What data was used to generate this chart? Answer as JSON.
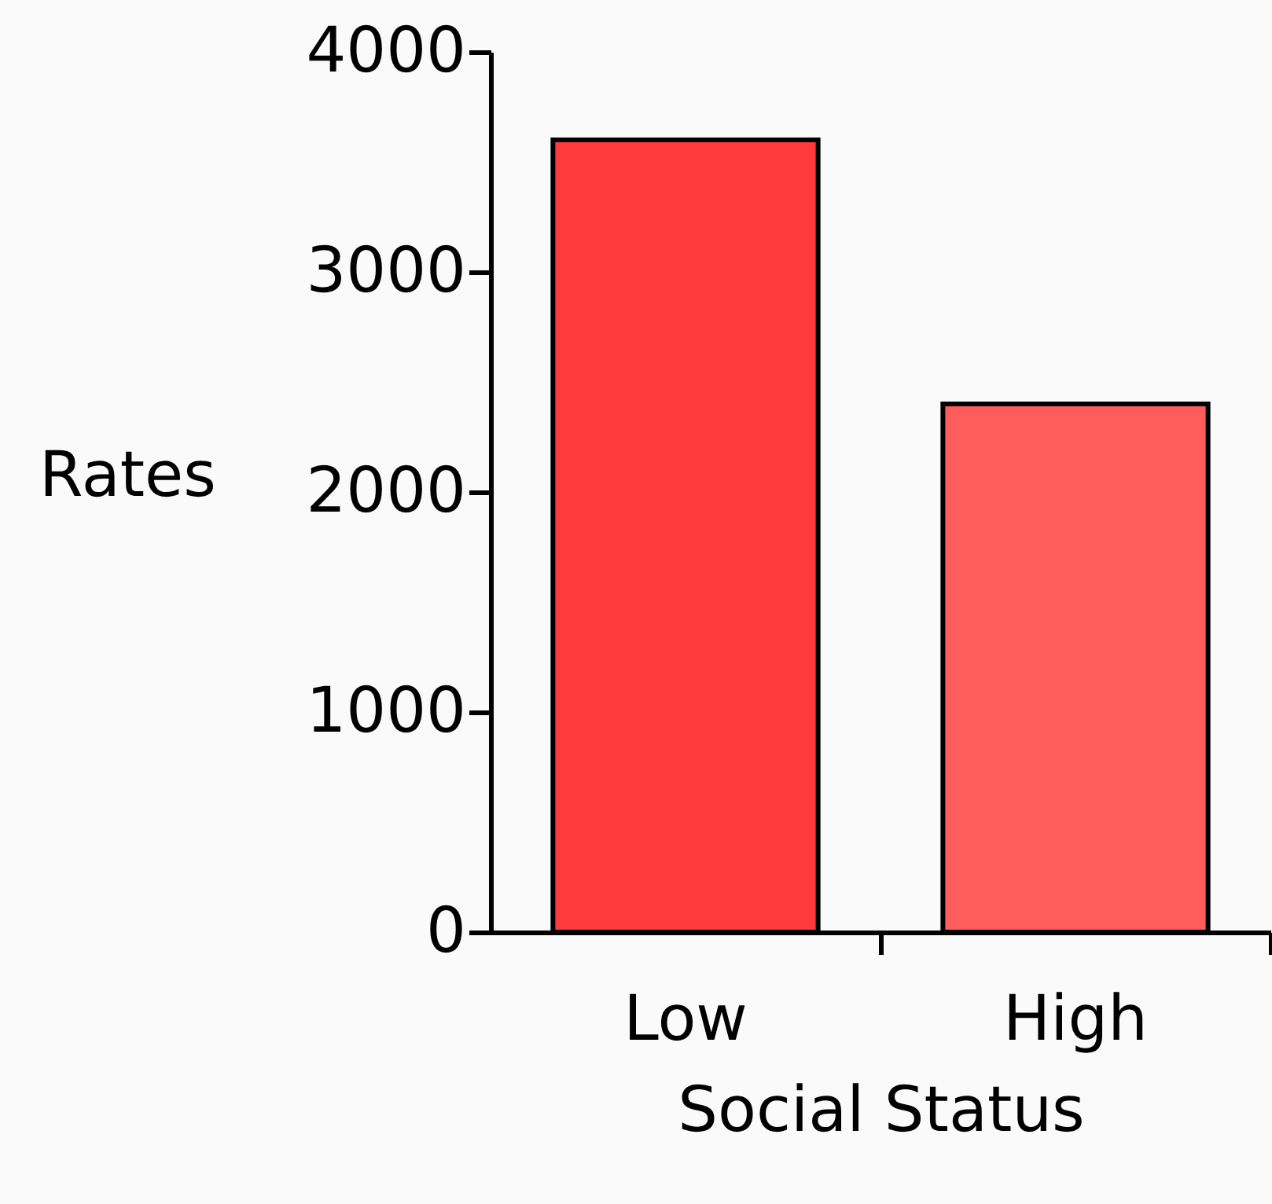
{
  "chart_data": {
    "type": "bar",
    "xlabel": "Social Status",
    "ylabel": "Rates",
    "categories": [
      "Low",
      "High"
    ],
    "values": [
      3600,
      2400
    ],
    "colors": [
      "#ff3a3a",
      "#ff5c5c"
    ],
    "ylim": [
      0,
      4000
    ],
    "yticks": [
      0,
      1000,
      2000,
      3000,
      4000
    ],
    "grid": false
  }
}
